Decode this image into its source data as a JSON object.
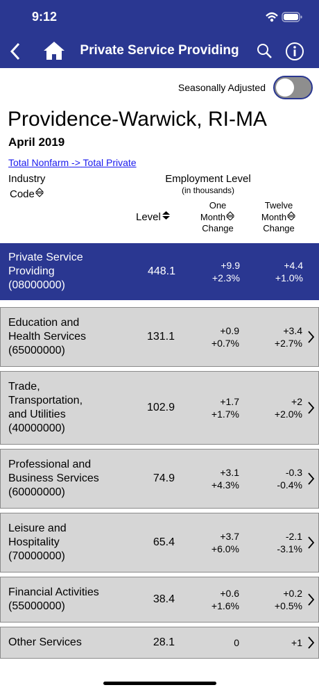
{
  "status_bar": {
    "time": "9:12"
  },
  "nav": {
    "title": "Private Service Providing"
  },
  "toggle": {
    "label": "Seasonally Adjusted"
  },
  "header": {
    "area": "Providence-Warwick, RI-MA",
    "date": "April 2019"
  },
  "breadcrumb": {
    "items": [
      "Total Nonfarm",
      "Total Private"
    ],
    "separator": "->"
  },
  "columns": {
    "industry": "Industry",
    "code": "Code",
    "employment_level": "Employment Level",
    "units": "(in thousands)",
    "level": "Level",
    "one_month": [
      "One",
      "Month",
      "Change"
    ],
    "twelve_month": [
      "Twelve",
      "Month",
      "Change"
    ]
  },
  "rows": [
    {
      "name": "Private Service Providing",
      "code": "(08000000)",
      "level": "448.1",
      "one_month": [
        "+9.9",
        "+2.3%"
      ],
      "twelve_month": [
        "+4.4",
        "+1.0%"
      ]
    },
    {
      "name": "Education and Health Services",
      "code": "(65000000)",
      "level": "131.1",
      "one_month": [
        "+0.9",
        "+0.7%"
      ],
      "twelve_month": [
        "+3.4",
        "+2.7%"
      ]
    },
    {
      "name": "Trade, Transportation, and Utilities",
      "code": "(40000000)",
      "level": "102.9",
      "one_month": [
        "+1.7",
        "+1.7%"
      ],
      "twelve_month": [
        "+2",
        "+2.0%"
      ]
    },
    {
      "name": "Professional and Business Services",
      "code": "(60000000)",
      "level": "74.9",
      "one_month": [
        "+3.1",
        "+4.3%"
      ],
      "twelve_month": [
        "-0.3",
        "-0.4%"
      ]
    },
    {
      "name": "Leisure and Hospitality",
      "code": "(70000000)",
      "level": "65.4",
      "one_month": [
        "+3.7",
        "+6.0%"
      ],
      "twelve_month": [
        "-2.1",
        "-3.1%"
      ]
    },
    {
      "name": "Financial Activities",
      "code": "(55000000)",
      "level": "38.4",
      "one_month": [
        "+0.6",
        "+1.6%"
      ],
      "twelve_month": [
        "+0.2",
        "+0.5%"
      ]
    },
    {
      "name": "Other Services",
      "code": "",
      "level": "28.1",
      "one_month": [
        "0"
      ],
      "twelve_month": [
        "+1"
      ]
    }
  ]
}
